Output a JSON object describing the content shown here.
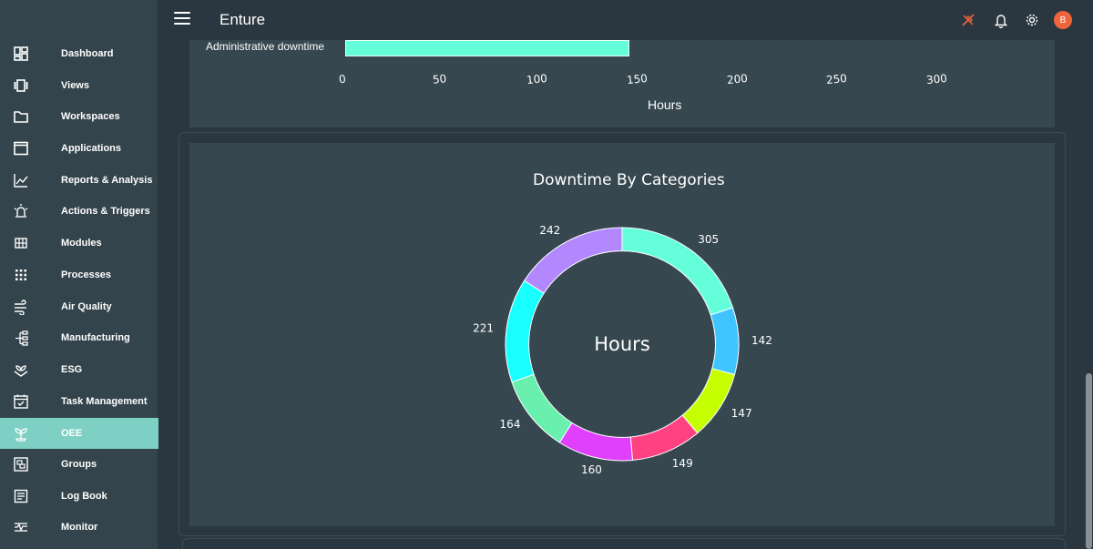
{
  "header": {
    "app_title": "Enture",
    "avatar_initial": "B"
  },
  "sidebar": {
    "items": [
      {
        "label": "Dashboard",
        "icon": "dashboard-icon"
      },
      {
        "label": "Views",
        "icon": "views-icon"
      },
      {
        "label": "Workspaces",
        "icon": "folder-icon"
      },
      {
        "label": "Applications",
        "icon": "window-icon"
      },
      {
        "label": "Reports & Analysis",
        "icon": "line-chart-icon"
      },
      {
        "label": "Actions & Triggers",
        "icon": "alarm-icon"
      },
      {
        "label": "Modules",
        "icon": "grid-icon"
      },
      {
        "label": "Processes",
        "icon": "dots-grid-icon"
      },
      {
        "label": "Air Quality",
        "icon": "wind-icon"
      },
      {
        "label": "Manufacturing",
        "icon": "hierarchy-icon"
      },
      {
        "label": "ESG",
        "icon": "plant-hand-icon"
      },
      {
        "label": "Task Management",
        "icon": "calendar-check-icon"
      },
      {
        "label": "OEE",
        "icon": "seedling-icon",
        "active": true
      },
      {
        "label": "Groups",
        "icon": "group-frame-icon"
      },
      {
        "label": "Log Book",
        "icon": "logbook-icon"
      },
      {
        "label": "Monitor",
        "icon": "monitor-icon"
      }
    ]
  },
  "bar_chart": {
    "category_label": "Administrative downtime",
    "x_ticks": [
      "0",
      "50",
      "100",
      "150",
      "200",
      "250",
      "300"
    ],
    "x_title": "Hours",
    "bar_value": 147,
    "x_range": [
      0,
      330
    ],
    "bar_color": "#64ffda"
  },
  "chart_data": {
    "type": "pie",
    "title": "Downtime By Categories",
    "center_label": "Hours",
    "hole": 0.8,
    "values": [
      305,
      142,
      147,
      149,
      160,
      164,
      221,
      242
    ],
    "labels": [
      "305",
      "142",
      "147",
      "149",
      "160",
      "164",
      "221",
      "242"
    ],
    "colors": [
      "#64ffda",
      "#40c4ff",
      "#c6ff00",
      "#ff4081",
      "#e040fb",
      "#69f0ae",
      "#18ffff",
      "#b388ff"
    ],
    "direction": "clockwise",
    "start": "top"
  },
  "colors": {
    "accent": "#7ecfc4",
    "sidebar_bg": "#34444c",
    "card_bg": "#37474f",
    "page_bg": "#2b3740",
    "notification_alert": "#f0643c"
  }
}
